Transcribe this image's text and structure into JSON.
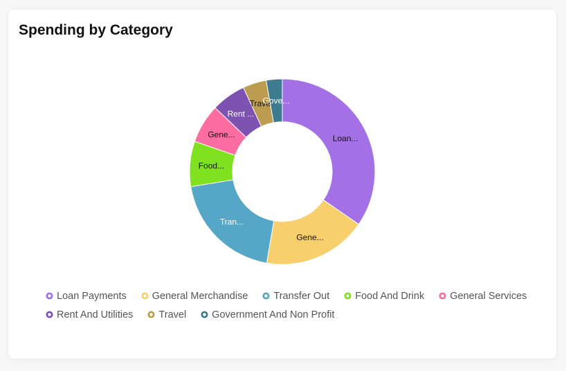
{
  "card": {
    "title": "Spending by Category"
  },
  "chart_data": {
    "type": "pie",
    "variant": "donut",
    "categories": [
      "Loan Payments",
      "General Merchandise",
      "Transfer Out",
      "Food And Drink",
      "General Services",
      "Rent And Utilities",
      "Travel",
      "Government And Non Profit"
    ],
    "values": [
      34.6,
      18.1,
      19.7,
      7.9,
      6.8,
      6.0,
      4.1,
      2.8
    ],
    "slice_labels": [
      "Loan...",
      "Gene...",
      "Tran...",
      "Food...",
      "Gene...",
      "Rent ...",
      "Travel",
      "Gove..."
    ],
    "colors": [
      "#a370e6",
      "#f8cf6d",
      "#56a6c7",
      "#7fe11f",
      "#fe6da1",
      "#7e52b1",
      "#bc9c51",
      "#3c7c8e"
    ],
    "legend_position": "bottom"
  }
}
